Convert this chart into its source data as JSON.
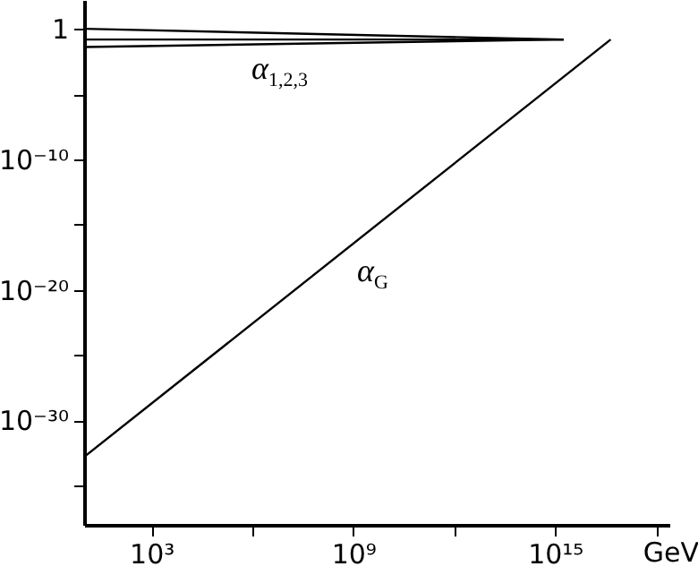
{
  "chart_data": {
    "type": "line",
    "log": "xy",
    "xlabel": "GeV",
    "xlim": [
      10,
      2.5e+18
    ],
    "ylim": [
      1e-38,
      160
    ],
    "xticks": [
      {
        "value": 1000,
        "label": "10³"
      },
      {
        "value": 1000000,
        "label": null
      },
      {
        "value": 1000000000,
        "label": "10⁹"
      },
      {
        "value": 1000000000000,
        "label": null
      },
      {
        "value": 1000000000000000,
        "label": "10¹⁵"
      },
      {
        "value": 1000000000000000000,
        "label": null
      }
    ],
    "yticks": [
      1,
      {
        "value": 1e-05,
        "label": null
      },
      {
        "value": 1e-10,
        "label": "10⁻¹⁰"
      },
      {
        "value": 1e-15,
        "label": null
      },
      {
        "value": 1e-20,
        "label": "10⁻²⁰"
      },
      {
        "value": 1e-25,
        "label": null
      },
      {
        "value": 1e-30,
        "label": "10⁻³⁰"
      },
      {
        "value": 1e-35,
        "label": null
      }
    ],
    "grid": false,
    "marker": "none",
    "line_style": "solid",
    "series": [
      {
        "color": "#000000",
        "x": [
          10,
          1800000000000000.0
        ],
        "values": [
          1,
          0.15
        ]
      },
      {
        "color": "#000000",
        "x": [
          10,
          1800000000000000.0
        ],
        "values": [
          0.15,
          0.15
        ]
      },
      {
        "color": "#000000",
        "x": [
          10,
          1800000000000000.0
        ],
        "values": [
          0.04,
          0.15
        ]
      },
      {
        "color": "#000000",
        "x": [
          10,
          4.5e+16
        ],
        "values": [
          1.6e-33,
          0.15
        ]
      }
    ],
    "annotations": [
      "α$_{1,2,3}$",
      "α$_{G}$"
    ]
  }
}
